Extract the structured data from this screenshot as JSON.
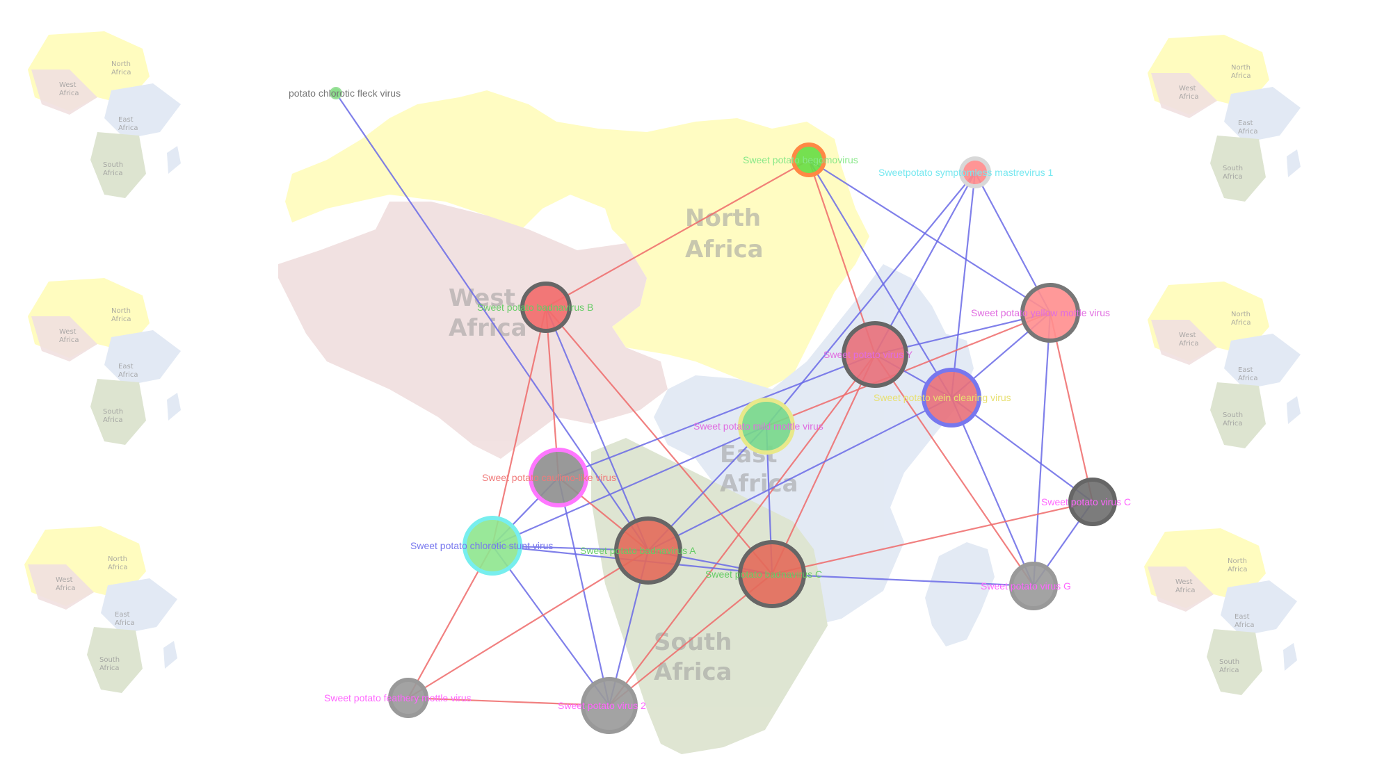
{
  "map_labels": {
    "north": "North Africa",
    "west": "West Africa",
    "east": "East Africa",
    "south": "South Africa"
  },
  "map_colors": {
    "north": "#fffcbf",
    "west": "#f1e0e0",
    "east": "#e2e9f4",
    "south": "#dde4d0"
  },
  "network": {
    "nodes": [
      {
        "id": "pcfv",
        "label": "potato chlorotic fleck virus",
        "fill": "#7fdc7f",
        "ring": "#9be09b",
        "label_color": "#777777"
      },
      {
        "id": "spbv",
        "label": "Sweet potato begomovirus",
        "fill": "#66dd44",
        "ring": "#ff8844",
        "label_color": "#88e888"
      },
      {
        "id": "spsmv1",
        "label": "Sweetpotato symptomless mastrevirus 1",
        "fill": "#ff8a8a",
        "ring": "#d8d8d8",
        "label_color": "#77e8f0"
      },
      {
        "id": "spbadB",
        "label": "Sweet potato badnavirus B",
        "fill": "#f26b6b",
        "ring": "#666666",
        "label_color": "#66cc66"
      },
      {
        "id": "spymv",
        "label": "Sweet potato yellow mottle virus",
        "fill": "#ff8e8e",
        "ring": "#777777",
        "label_color": "#e06ce0"
      },
      {
        "id": "spvy",
        "label": "Sweet potato virus Y",
        "fill": "#e8707a",
        "ring": "#666666",
        "label_color": "#e06ce0"
      },
      {
        "id": "spvcv",
        "label": "Sweet potato vein clearing virus",
        "fill": "#e8707a",
        "ring": "#7777ee",
        "label_color": "#e8e070"
      },
      {
        "id": "spmmv",
        "label": "Sweet potato mild mottle virus",
        "fill": "#77d88a",
        "ring": "#e8e88a",
        "label_color": "#e06ce0"
      },
      {
        "id": "spclv",
        "label": "Sweet potato caulimo-like virus",
        "fill": "#8e8e8e",
        "ring": "#ff77ff",
        "label_color": "#f07a7a"
      },
      {
        "id": "spvc",
        "label": "Sweet potato virus C",
        "fill": "#6e6e6e",
        "ring": "#666666",
        "label_color": "#ff66ff"
      },
      {
        "id": "spcsv",
        "label": "Sweet potato chlorotic stunt virus",
        "fill": "#8ee68e",
        "ring": "#77eeee",
        "label_color": "#7777ee"
      },
      {
        "id": "spbadA",
        "label": "Sweet potato badnavirus A",
        "fill": "#e36a5a",
        "ring": "#666666",
        "label_color": "#66cc66"
      },
      {
        "id": "spbadC",
        "label": "Sweet potato badnavirus C",
        "fill": "#e36a5a",
        "ring": "#666666",
        "label_color": "#66cc66"
      },
      {
        "id": "spvg",
        "label": "Sweet potato virus G",
        "fill": "#999999",
        "ring": "#999999",
        "label_color": "#ff66ff"
      },
      {
        "id": "spfmv",
        "label": "Sweet potato feathery mottle virus",
        "fill": "#999999",
        "ring": "#999999",
        "label_color": "#ff66ff"
      },
      {
        "id": "spv2",
        "label": "Sweet potato virus 2",
        "fill": "#999999",
        "ring": "#999999",
        "label_color": "#ff66ff"
      }
    ],
    "edges": [
      {
        "a": "pcfv",
        "b": "spbadA",
        "kind": "blue"
      },
      {
        "a": "spbv",
        "b": "spbadB",
        "kind": "red"
      },
      {
        "a": "spbv",
        "b": "spvy",
        "kind": "red"
      },
      {
        "a": "spbv",
        "b": "spvcv",
        "kind": "blue"
      },
      {
        "a": "spbv",
        "b": "spymv",
        "kind": "blue"
      },
      {
        "a": "spsmv1",
        "b": "spvcv",
        "kind": "blue"
      },
      {
        "a": "spsmv1",
        "b": "spymv",
        "kind": "blue"
      },
      {
        "a": "spsmv1",
        "b": "spvy",
        "kind": "blue"
      },
      {
        "a": "spsmv1",
        "b": "spmmv",
        "kind": "blue"
      },
      {
        "a": "spbadB",
        "b": "spclv",
        "kind": "red"
      },
      {
        "a": "spbadB",
        "b": "spcsv",
        "kind": "red"
      },
      {
        "a": "spbadB",
        "b": "spbadC",
        "kind": "red"
      },
      {
        "a": "spymv",
        "b": "spvy",
        "kind": "blue"
      },
      {
        "a": "spymv",
        "b": "spvcv",
        "kind": "blue"
      },
      {
        "a": "spymv",
        "b": "spvc",
        "kind": "red"
      },
      {
        "a": "spymv",
        "b": "spvg",
        "kind": "blue"
      },
      {
        "a": "spymv",
        "b": "spmmv",
        "kind": "red"
      },
      {
        "a": "spvy",
        "b": "spvcv",
        "kind": "blue"
      },
      {
        "a": "spvy",
        "b": "spvg",
        "kind": "red"
      },
      {
        "a": "spvy",
        "b": "spbadC",
        "kind": "red"
      },
      {
        "a": "spvy",
        "b": "spclv",
        "kind": "blue"
      },
      {
        "a": "spvy",
        "b": "spv2",
        "kind": "red"
      },
      {
        "a": "spvcv",
        "b": "spvc",
        "kind": "blue"
      },
      {
        "a": "spvcv",
        "b": "spvg",
        "kind": "blue"
      },
      {
        "a": "spvcv",
        "b": "spbadA",
        "kind": "blue"
      },
      {
        "a": "spmmv",
        "b": "spcsv",
        "kind": "blue"
      },
      {
        "a": "spmmv",
        "b": "spbadA",
        "kind": "blue"
      },
      {
        "a": "spmmv",
        "b": "spbadC",
        "kind": "blue"
      },
      {
        "a": "spclv",
        "b": "spbadA",
        "kind": "red"
      },
      {
        "a": "spclv",
        "b": "spcsv",
        "kind": "blue"
      },
      {
        "a": "spclv",
        "b": "spv2",
        "kind": "blue"
      },
      {
        "a": "spvc",
        "b": "spvg",
        "kind": "blue"
      },
      {
        "a": "spvc",
        "b": "spbadC",
        "kind": "red"
      },
      {
        "a": "spcsv",
        "b": "spbadA",
        "kind": "blue"
      },
      {
        "a": "spcsv",
        "b": "spbadC",
        "kind": "blue"
      },
      {
        "a": "spcsv",
        "b": "spfmv",
        "kind": "red"
      },
      {
        "a": "spcsv",
        "b": "spv2",
        "kind": "blue"
      },
      {
        "a": "spbadA",
        "b": "spbadC",
        "kind": "blue"
      },
      {
        "a": "spbadA",
        "b": "spfmv",
        "kind": "red"
      },
      {
        "a": "spbadA",
        "b": "spv2",
        "kind": "blue"
      },
      {
        "a": "spbadC",
        "b": "spvg",
        "kind": "blue"
      },
      {
        "a": "spbadC",
        "b": "spv2",
        "kind": "red"
      },
      {
        "a": "spfmv",
        "b": "spv2",
        "kind": "red"
      },
      {
        "a": "spbadB",
        "b": "spbadA",
        "kind": "blue"
      }
    ],
    "edge_colors": {
      "blue": "#6a6ae6",
      "red": "#ee6a6a"
    }
  }
}
